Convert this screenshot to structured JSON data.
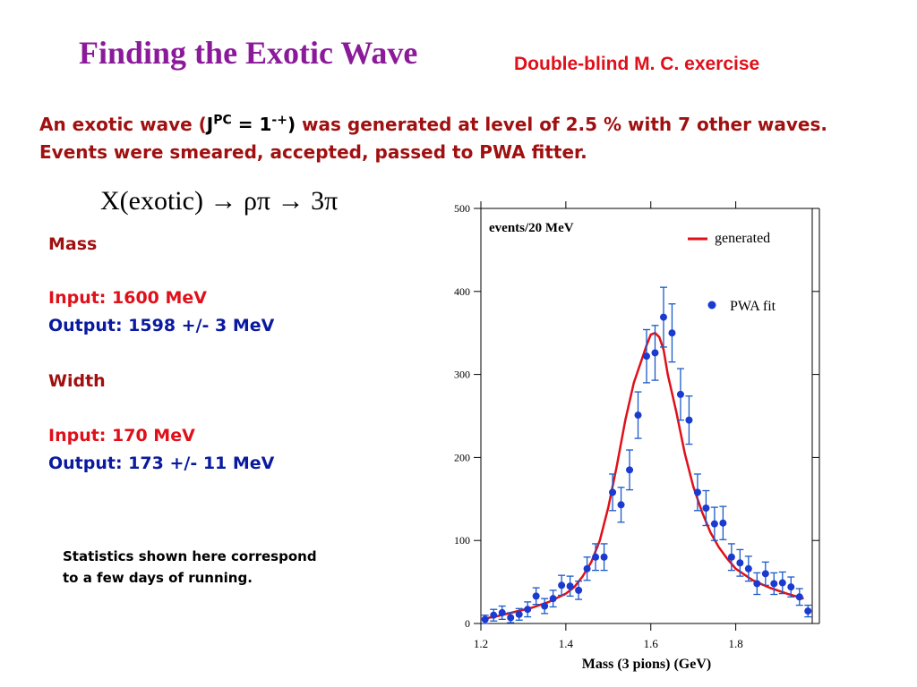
{
  "slide": {
    "title": "Finding the Exotic Wave",
    "subtitle": "Double-blind M. C. exercise",
    "intro_a": "An exotic wave (",
    "intro_j": "J",
    "intro_pc": "PC",
    "intro_eq": " = 1",
    "intro_mp": "-+",
    "intro_close": ")",
    "intro_b": " was generated at level of 2.5 % with 7 other waves. Events were smeared, accepted, passed to PWA fitter.",
    "reaction": "X(exotic) → ρπ → 3π",
    "mass_heading": "Mass",
    "mass_input": "Input:  1600 MeV",
    "mass_output": "Output: 1598 +/- 3 MeV",
    "width_heading": "Width",
    "width_input": "Input: 170 MeV",
    "width_output": "Output:  173 +/- 11 MeV",
    "note_line1": "Statistics shown here correspond",
    "note_line2": "to a few days of running."
  },
  "colors": {
    "title": "#8b1a9a",
    "accent_red": "#e0101a",
    "dark_red": "#a01010",
    "blue": "#0a1aa0",
    "curve": "#e0101a",
    "points": "#1a3ad0"
  },
  "chart_data": {
    "type": "scatter",
    "xlabel": "Mass (3 pions)  (GeV)",
    "ylabel": "events/20 MeV",
    "xlim": [
      1.2,
      1.98
    ],
    "ylim": [
      0,
      500
    ],
    "xticks": [
      1.2,
      1.4,
      1.6,
      1.8
    ],
    "yticks": [
      0,
      100,
      200,
      300,
      400,
      500
    ],
    "grid": false,
    "legend_position": "top-right",
    "series": [
      {
        "name": "generated",
        "kind": "line",
        "x": [
          1.2,
          1.24,
          1.28,
          1.32,
          1.36,
          1.4,
          1.42,
          1.44,
          1.46,
          1.48,
          1.5,
          1.52,
          1.54,
          1.56,
          1.58,
          1.59,
          1.6,
          1.61,
          1.62,
          1.63,
          1.64,
          1.66,
          1.68,
          1.7,
          1.72,
          1.74,
          1.76,
          1.78,
          1.8,
          1.84,
          1.88,
          1.92,
          1.96
        ],
        "y": [
          5,
          9,
          14,
          19,
          26,
          36,
          44,
          57,
          74,
          100,
          140,
          190,
          245,
          290,
          320,
          335,
          348,
          350,
          345,
          330,
          300,
          255,
          205,
          165,
          135,
          110,
          92,
          78,
          66,
          52,
          43,
          36,
          30
        ]
      },
      {
        "name": "PWA fit",
        "kind": "points",
        "x": [
          1.21,
          1.23,
          1.25,
          1.27,
          1.29,
          1.31,
          1.33,
          1.35,
          1.37,
          1.39,
          1.41,
          1.43,
          1.45,
          1.47,
          1.49,
          1.51,
          1.53,
          1.55,
          1.57,
          1.59,
          1.61,
          1.63,
          1.65,
          1.67,
          1.69,
          1.71,
          1.73,
          1.75,
          1.77,
          1.79,
          1.81,
          1.83,
          1.85,
          1.87,
          1.89,
          1.91,
          1.93,
          1.95,
          1.97
        ],
        "y": [
          5,
          10,
          13,
          7,
          11,
          17,
          33,
          21,
          30,
          46,
          45,
          40,
          66,
          80,
          80,
          158,
          143,
          185,
          251,
          322,
          326,
          369,
          350,
          276,
          245,
          158,
          139,
          120,
          121,
          80,
          73,
          66,
          48,
          60,
          48,
          49,
          44,
          32,
          15
        ],
        "err": [
          5,
          7,
          8,
          6,
          7,
          9,
          10,
          9,
          10,
          12,
          12,
          11,
          14,
          16,
          16,
          22,
          21,
          24,
          28,
          32,
          33,
          36,
          35,
          31,
          29,
          22,
          21,
          20,
          20,
          16,
          16,
          15,
          13,
          14,
          13,
          13,
          12,
          10,
          7
        ]
      }
    ]
  }
}
